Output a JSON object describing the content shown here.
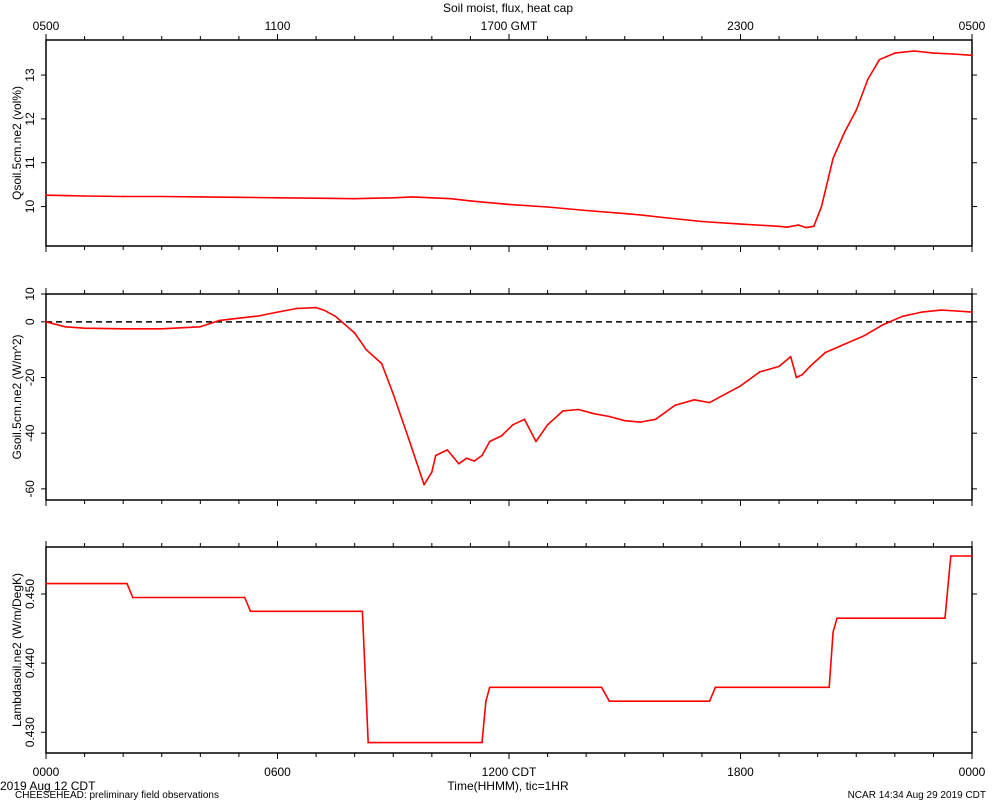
{
  "chart_data": {
    "title": "Soil moist, flux, heat cap",
    "top_axis_ticks": [
      "0500",
      "1100",
      "1700 GMT",
      "2300",
      "0500"
    ],
    "bottom_axis_ticks": [
      "0000",
      "0600",
      "1200 CDT",
      "1800",
      "0000"
    ],
    "xlabel": "Time(HHMM), tic=1HR",
    "start_date": "2019 Aug 12 CDT",
    "footer_left": "CHEESEHEAD: preliminary field observations",
    "footer_right": "NCAR 14:34 Aug 29 2019 CDT",
    "xlim": [
      0,
      24
    ],
    "line_color": "#ff0000",
    "panels": [
      {
        "type": "line",
        "ylabel": "Qsoil.5cm.ne2 (vol%)",
        "ylim": [
          9.1,
          13.8
        ],
        "yticks": [
          10,
          11,
          12,
          13
        ],
        "ytick_labels": [
          "10",
          "11",
          "12",
          "13"
        ],
        "zero_line": false,
        "x": [
          0,
          0.5,
          1,
          2,
          3,
          4,
          5,
          6,
          7,
          8,
          8.5,
          9,
          9.5,
          10,
          10.5,
          11,
          12,
          13,
          14,
          15,
          15.5,
          16,
          17,
          18,
          19,
          19.2,
          19.5,
          19.7,
          19.9,
          20.1,
          20.4,
          20.7,
          21,
          21.3,
          21.6,
          22,
          22.5,
          23,
          23.5,
          24
        ],
        "values": [
          10.26,
          10.25,
          10.24,
          10.23,
          10.23,
          10.22,
          10.21,
          10.2,
          10.19,
          10.18,
          10.19,
          10.2,
          10.22,
          10.2,
          10.18,
          10.13,
          10.05,
          9.99,
          9.91,
          9.84,
          9.8,
          9.75,
          9.66,
          9.6,
          9.55,
          9.53,
          9.58,
          9.52,
          9.55,
          10.0,
          11.1,
          11.7,
          12.2,
          12.9,
          13.35,
          13.5,
          13.55,
          13.5,
          13.48,
          13.45
        ]
      },
      {
        "type": "line",
        "ylabel": "Gsoil.5cm.ne2 (W/m^2)",
        "ylim": [
          -64,
          10
        ],
        "yticks": [
          10,
          0,
          -20,
          -40,
          -60
        ],
        "ytick_labels": [
          "10",
          "0",
          "-20",
          "-40",
          "-60"
        ],
        "zero_line": true,
        "x": [
          0,
          0.5,
          1,
          2,
          3,
          4,
          4.5,
          5,
          5.5,
          6,
          6.5,
          7,
          7.2,
          7.5,
          8,
          8.3,
          8.7,
          9,
          9.4,
          9.8,
          10.0,
          10.1,
          10.4,
          10.7,
          10.9,
          11.1,
          11.3,
          11.5,
          11.8,
          12.1,
          12.4,
          12.7,
          13.0,
          13.4,
          13.8,
          14.2,
          14.6,
          15.0,
          15.4,
          15.8,
          16.3,
          16.8,
          17.2,
          17.6,
          18.0,
          18.5,
          19.0,
          19.3,
          19.45,
          19.6,
          19.8,
          20.2,
          20.7,
          21.2,
          21.7,
          22.2,
          22.7,
          23.2,
          23.6,
          24
        ],
        "values": [
          0,
          -1.8,
          -2.3,
          -2.5,
          -2.5,
          -1.8,
          0.5,
          1.3,
          2.1,
          3.5,
          4.8,
          5.1,
          4.2,
          2.0,
          -4.0,
          -10.0,
          -15.0,
          -26.0,
          -42.0,
          -58.5,
          -54.0,
          -48.0,
          -46.0,
          -51.0,
          -49.0,
          -50.0,
          -48.0,
          -43.0,
          -41.0,
          -37.0,
          -35.0,
          -43.0,
          -37.0,
          -32.0,
          -31.5,
          -33.0,
          -34.0,
          -35.5,
          -36.0,
          -35.0,
          -30.0,
          -28.0,
          -29.0,
          -26.0,
          -23.0,
          -18.0,
          -16.0,
          -12.5,
          -20.0,
          -19.0,
          -16.0,
          -11.0,
          -8.0,
          -5.0,
          -1.0,
          2.0,
          3.5,
          4.2,
          3.9,
          3.5
        ]
      },
      {
        "type": "line",
        "ylabel": "Lambdasoil.ne2 (W/m/DegK)",
        "ylim": [
          0.427,
          0.4568
        ],
        "yticks": [
          0.43,
          0.44,
          0.45
        ],
        "ytick_labels": [
          "0.430",
          "0.440",
          "0.450"
        ],
        "zero_line": false,
        "x": [
          0,
          2.1,
          2.25,
          5.15,
          5.3,
          8.2,
          8.35,
          11.3,
          11.4,
          11.5,
          14.4,
          14.6,
          17.2,
          17.35,
          20.3,
          20.4,
          20.5,
          23.3,
          23.45,
          24
        ],
        "values": [
          0.4515,
          0.4515,
          0.4495,
          0.4495,
          0.4475,
          0.4475,
          0.4285,
          0.4285,
          0.4345,
          0.4365,
          0.4365,
          0.4345,
          0.4345,
          0.4365,
          0.4365,
          0.4445,
          0.4465,
          0.4465,
          0.4555,
          0.4555
        ]
      }
    ]
  }
}
